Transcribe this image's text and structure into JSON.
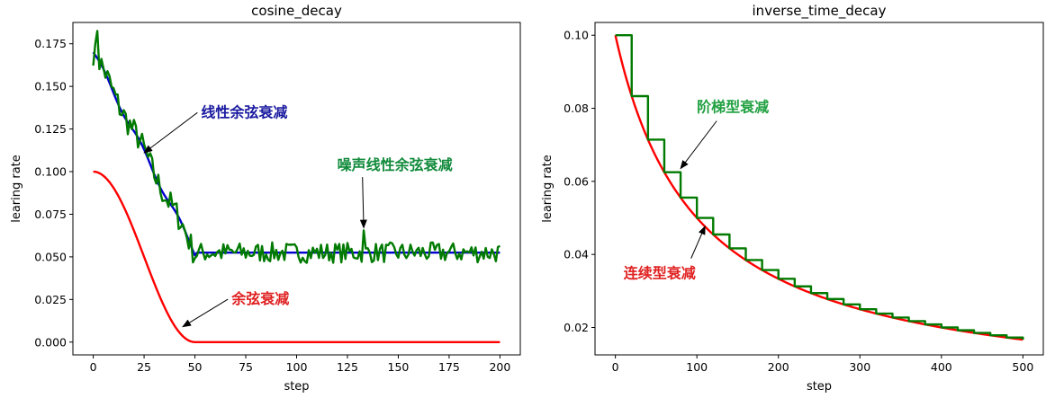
{
  "chart_data": [
    {
      "type": "line",
      "title": "cosine_decay",
      "xlabel": "step",
      "ylabel": "learing rate",
      "xlim": [
        -10,
        210
      ],
      "ylim": [
        -0.0075,
        0.1875
      ],
      "xticks": [
        0,
        25,
        50,
        75,
        100,
        125,
        150,
        175,
        200
      ],
      "yticks": [
        0.0,
        0.025,
        0.05,
        0.075,
        0.1,
        0.125,
        0.15,
        0.175
      ],
      "ytick_labels": [
        "0.000",
        "0.025",
        "0.050",
        "0.075",
        "0.100",
        "0.125",
        "0.150",
        "0.175"
      ],
      "series": [
        {
          "name": "余弦衰减",
          "kind": "cosine",
          "color": "#ff0000",
          "initial": 0.1,
          "decay_steps": 50,
          "steps": 200
        },
        {
          "name": "线性余弦衰减",
          "kind": "linear_cosine",
          "color": "#0000cc",
          "start": 0.17,
          "floor": 0.0525,
          "decay_steps": 50,
          "steps": 200
        },
        {
          "name": "噪声线性余弦衰减",
          "kind": "noisy_linear_cosine",
          "color": "#007a00",
          "noise_amplitude": 0.006,
          "steps": 200
        }
      ],
      "annotations": [
        {
          "text": "线性余弦衰减",
          "color": "#1a1aa0",
          "text_at": [
            53,
            0.132
          ],
          "arrow_to": [
            25,
            0.111
          ]
        },
        {
          "text": "噪声线性余弦衰减",
          "color": "#108a3a",
          "text_at": [
            120,
            0.101
          ],
          "arrow_to": [
            133,
            0.067
          ]
        },
        {
          "text": "余弦衰减",
          "color": "#e02020",
          "text_at": [
            68,
            0.0225
          ],
          "arrow_to": [
            44,
            0.009
          ]
        }
      ]
    },
    {
      "type": "line",
      "title": "inverse_time_decay",
      "xlabel": "step",
      "ylabel": "learing rate",
      "xlim": [
        -25,
        525
      ],
      "ylim": [
        0.0125,
        0.1035
      ],
      "xticks": [
        0,
        100,
        200,
        300,
        400,
        500
      ],
      "yticks": [
        0.02,
        0.04,
        0.06,
        0.08,
        0.1
      ],
      "ytick_labels": [
        "0.02",
        "0.04",
        "0.06",
        "0.08",
        "0.10"
      ],
      "series": [
        {
          "name": "连续型衰减",
          "kind": "inverse_time",
          "color": "#ff0000",
          "initial": 0.1,
          "decay_rate": 0.01,
          "steps": 500
        },
        {
          "name": "阶梯型衰减",
          "kind": "inverse_time_staircase",
          "color": "#007a00",
          "initial": 0.1,
          "decay_rate": 0.01,
          "step_width": 20,
          "steps": 500
        }
      ],
      "annotations": [
        {
          "text": "阶梯型衰减",
          "color": "#20a040",
          "text_at": [
            100,
            0.079
          ],
          "arrow_to": [
            80,
            0.0635
          ]
        },
        {
          "text": "连续型衰减",
          "color": "#e02020",
          "text_at": [
            10,
            0.0335
          ],
          "arrow_to": [
            110,
            0.0477
          ]
        }
      ]
    }
  ]
}
